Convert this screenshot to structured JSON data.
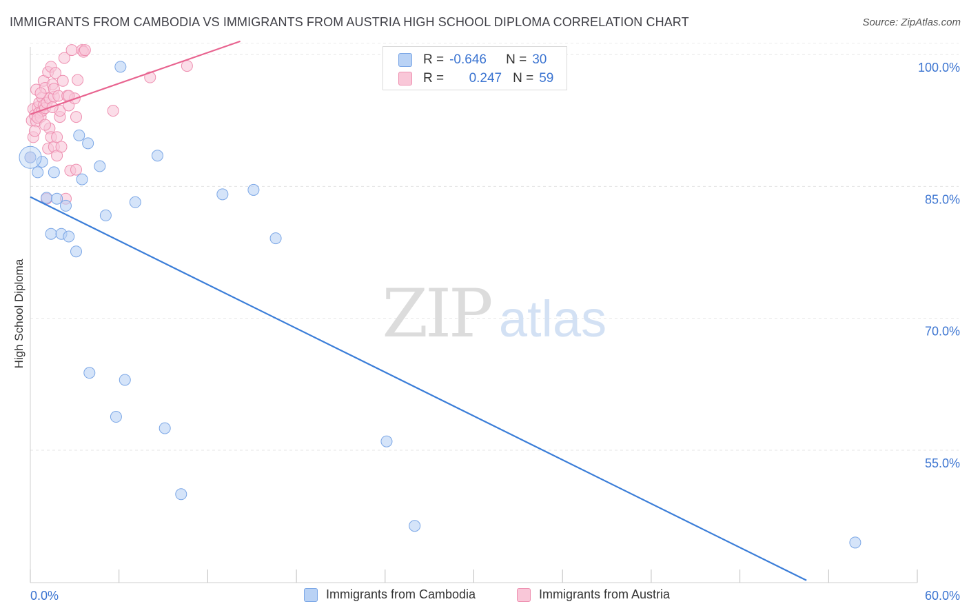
{
  "title": "IMMIGRANTS FROM CAMBODIA VS IMMIGRANTS FROM AUSTRIA HIGH SCHOOL DIPLOMA CORRELATION CHART",
  "source": "Source: ZipAtlas.com",
  "watermark": {
    "zip": "ZIP",
    "atlas": "atlas"
  },
  "legend": {
    "rows": [
      {
        "r_label": "R =",
        "r_value": "-0.646",
        "n_label": "N =",
        "n_value": "30",
        "color": "#7aa6e6",
        "fill": "#b9d2f5"
      },
      {
        "r_label": "R =",
        "r_value": "0.247",
        "n_label": "N =",
        "n_value": "59",
        "color": "#ee8fb0",
        "fill": "#f9c7d8"
      }
    ]
  },
  "bottom_legend": [
    {
      "label": "Immigrants from Cambodia",
      "color": "#7aa6e6",
      "fill": "#b9d2f5"
    },
    {
      "label": "Immigrants from Austria",
      "color": "#ee8fb0",
      "fill": "#f9c7d8"
    }
  ],
  "chart_data": {
    "type": "scatter",
    "title": "IMMIGRANTS FROM CAMBODIA VS IMMIGRANTS FROM AUSTRIA HIGH SCHOOL DIPLOMA CORRELATION CHART",
    "xlabel": "",
    "ylabel": "High School Diploma",
    "xlim": [
      0,
      60
    ],
    "ylim": [
      40,
      101.5
    ],
    "x_tick_labels": [
      "0.0%",
      "60.0%"
    ],
    "y_ticks": [
      55,
      70,
      85,
      100
    ],
    "y_tick_labels": [
      "55.0%",
      "70.0%",
      "85.0%",
      "100.0%"
    ],
    "grid": true,
    "series": [
      {
        "name": "Immigrants from Cambodia",
        "color": "#3a7dd8",
        "fill": "#b9d2f5",
        "stroke": "#7aa6e6",
        "trend": {
          "x": [
            0,
            52.5
          ],
          "y": [
            83.8,
            40.2
          ]
        },
        "points": [
          {
            "x": 0.0,
            "y": 88.3
          },
          {
            "x": 0.5,
            "y": 86.6
          },
          {
            "x": 0.8,
            "y": 87.8
          },
          {
            "x": 1.1,
            "y": 83.7
          },
          {
            "x": 1.4,
            "y": 79.6
          },
          {
            "x": 1.6,
            "y": 86.6
          },
          {
            "x": 1.8,
            "y": 83.6
          },
          {
            "x": 2.1,
            "y": 79.6
          },
          {
            "x": 2.4,
            "y": 82.8
          },
          {
            "x": 2.6,
            "y": 79.3
          },
          {
            "x": 3.1,
            "y": 77.6
          },
          {
            "x": 3.3,
            "y": 90.8
          },
          {
            "x": 3.5,
            "y": 85.8
          },
          {
            "x": 3.9,
            "y": 89.9
          },
          {
            "x": 4.0,
            "y": 63.8
          },
          {
            "x": 4.7,
            "y": 87.3
          },
          {
            "x": 5.1,
            "y": 81.7
          },
          {
            "x": 5.8,
            "y": 58.8
          },
          {
            "x": 6.1,
            "y": 98.6
          },
          {
            "x": 6.4,
            "y": 63.0
          },
          {
            "x": 7.1,
            "y": 83.2
          },
          {
            "x": 8.6,
            "y": 88.5
          },
          {
            "x": 9.1,
            "y": 57.5
          },
          {
            "x": 10.2,
            "y": 50.0
          },
          {
            "x": 13.0,
            "y": 84.1
          },
          {
            "x": 15.1,
            "y": 84.6
          },
          {
            "x": 16.6,
            "y": 79.1
          },
          {
            "x": 24.1,
            "y": 56.0
          },
          {
            "x": 26.0,
            "y": 46.4
          },
          {
            "x": 55.8,
            "y": 44.5
          }
        ]
      },
      {
        "name": "Immigrants from Austria",
        "color": "#e8638f",
        "fill": "#f9c7d8",
        "stroke": "#ee8fb0",
        "trend": {
          "x": [
            0,
            14.2
          ],
          "y": [
            93.2,
            101.5
          ]
        },
        "points": [
          {
            "x": 0.1,
            "y": 92.5
          },
          {
            "x": 0.2,
            "y": 93.8
          },
          {
            "x": 0.2,
            "y": 90.6
          },
          {
            "x": 0.3,
            "y": 93.1
          },
          {
            "x": 0.4,
            "y": 96.0
          },
          {
            "x": 0.4,
            "y": 92.4
          },
          {
            "x": 0.5,
            "y": 94.0
          },
          {
            "x": 0.6,
            "y": 93.4
          },
          {
            "x": 0.6,
            "y": 94.5
          },
          {
            "x": 0.7,
            "y": 92.9
          },
          {
            "x": 0.8,
            "y": 95.1
          },
          {
            "x": 0.8,
            "y": 93.6
          },
          {
            "x": 0.9,
            "y": 97.0
          },
          {
            "x": 0.9,
            "y": 94.2
          },
          {
            "x": 1.0,
            "y": 93.9
          },
          {
            "x": 1.0,
            "y": 96.2
          },
          {
            "x": 1.1,
            "y": 94.5
          },
          {
            "x": 1.1,
            "y": 83.6
          },
          {
            "x": 1.2,
            "y": 98.0
          },
          {
            "x": 1.2,
            "y": 89.3
          },
          {
            "x": 1.3,
            "y": 95.0
          },
          {
            "x": 1.3,
            "y": 91.6
          },
          {
            "x": 1.4,
            "y": 98.6
          },
          {
            "x": 1.4,
            "y": 90.6
          },
          {
            "x": 1.5,
            "y": 96.6
          },
          {
            "x": 1.6,
            "y": 95.2
          },
          {
            "x": 1.6,
            "y": 96.1
          },
          {
            "x": 1.6,
            "y": 89.5
          },
          {
            "x": 1.7,
            "y": 97.9
          },
          {
            "x": 1.8,
            "y": 90.6
          },
          {
            "x": 1.8,
            "y": 88.5
          },
          {
            "x": 1.9,
            "y": 95.3
          },
          {
            "x": 2.0,
            "y": 92.9
          },
          {
            "x": 2.0,
            "y": 93.6
          },
          {
            "x": 2.1,
            "y": 89.5
          },
          {
            "x": 2.2,
            "y": 97.0
          },
          {
            "x": 2.3,
            "y": 99.6
          },
          {
            "x": 2.4,
            "y": 83.6
          },
          {
            "x": 2.5,
            "y": 95.3
          },
          {
            "x": 2.6,
            "y": 94.2
          },
          {
            "x": 2.7,
            "y": 86.8
          },
          {
            "x": 2.8,
            "y": 100.5
          },
          {
            "x": 3.0,
            "y": 95.0
          },
          {
            "x": 3.1,
            "y": 86.9
          },
          {
            "x": 3.1,
            "y": 92.9
          },
          {
            "x": 3.2,
            "y": 97.1
          },
          {
            "x": 3.5,
            "y": 100.5
          },
          {
            "x": 3.6,
            "y": 100.3
          },
          {
            "x": 3.7,
            "y": 100.5
          },
          {
            "x": 5.6,
            "y": 93.6
          },
          {
            "x": 8.1,
            "y": 97.4
          },
          {
            "x": 10.6,
            "y": 98.7
          },
          {
            "x": 0.3,
            "y": 91.3
          },
          {
            "x": 0.5,
            "y": 92.8
          },
          {
            "x": 0.7,
            "y": 95.6
          },
          {
            "x": 1.0,
            "y": 92.0
          },
          {
            "x": 1.5,
            "y": 94.0
          },
          {
            "x": 2.6,
            "y": 95.3
          },
          {
            "x": 0.0,
            "y": 88.3
          }
        ]
      }
    ]
  }
}
